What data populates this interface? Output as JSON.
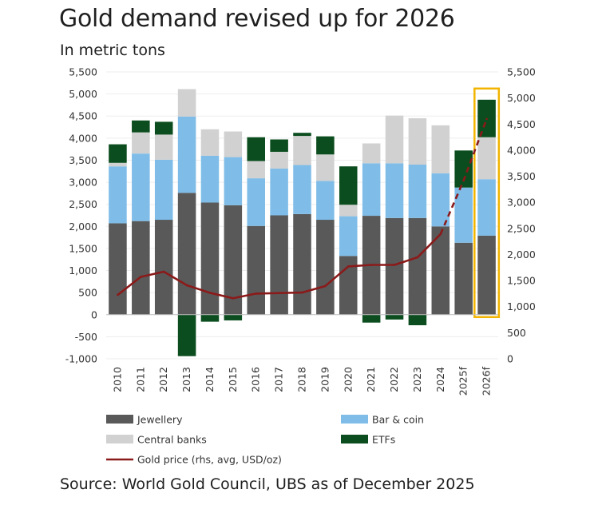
{
  "chart_data": {
    "type": "bar",
    "stacked": true,
    "title": "Gold demand revised up for 2026",
    "subtitle": "In metric tons",
    "source": "Source: World Gold Council, UBS as of December 2025",
    "categories": [
      "2010",
      "2011",
      "2012",
      "2013",
      "2014",
      "2015",
      "2016",
      "2017",
      "2018",
      "2019",
      "2020",
      "2021",
      "2022",
      "2023",
      "2024",
      "2025f",
      "2026f"
    ],
    "series": [
      {
        "name": "Jewellery",
        "color": "#595959",
        "values": [
          2070,
          2120,
          2150,
          2760,
          2540,
          2480,
          2010,
          2250,
          2280,
          2150,
          1330,
          2240,
          2190,
          2190,
          2000,
          1630,
          1790
        ]
      },
      {
        "name": "Bar & coin",
        "color": "#7fbde8",
        "values": [
          1290,
          1530,
          1360,
          1730,
          1060,
          1090,
          1080,
          1060,
          1110,
          880,
          900,
          1190,
          1240,
          1210,
          1200,
          1250,
          1280
        ]
      },
      {
        "name": "Central banks",
        "color": "#d1d1d1",
        "values": [
          80,
          480,
          570,
          620,
          600,
          580,
          390,
          380,
          660,
          600,
          260,
          450,
          1080,
          1050,
          1090,
          0,
          950
        ]
      },
      {
        "name": "ETFs",
        "color": "#0b4d1e",
        "values": [
          420,
          270,
          290,
          -940,
          -160,
          -130,
          540,
          280,
          70,
          410,
          870,
          -180,
          -110,
          -240,
          0,
          840,
          850
        ]
      }
    ],
    "line_series": {
      "name": "Gold price (rhs, avg, USD/oz)",
      "color": "#8b1a1a",
      "values": [
        1225,
        1570,
        1670,
        1410,
        1265,
        1160,
        1250,
        1260,
        1270,
        1395,
        1770,
        1800,
        1800,
        1945,
        2390,
        3420,
        4600
      ]
    },
    "left_axis": {
      "min": -1000,
      "max": 5500,
      "step": 500,
      "tick_labels": [
        "-1,000",
        "-500",
        "0",
        "500",
        "1,000",
        "1,500",
        "2,000",
        "2,500",
        "3,000",
        "3,500",
        "4,000",
        "4,500",
        "5,000",
        "5,500"
      ]
    },
    "right_axis": {
      "min": 0,
      "max": 5500,
      "step": 500,
      "tick_labels": [
        "0",
        "500",
        "1,000",
        "1,500",
        "2,000",
        "2,500",
        "3,000",
        "3,500",
        "4,000",
        "4,500",
        "5,000",
        "5,500"
      ]
    },
    "highlight_category": "2026f",
    "highlight_color": "#f2b400",
    "legend": [
      {
        "label": "Jewellery",
        "color": "#595959",
        "kind": "box"
      },
      {
        "label": "Bar & coin",
        "color": "#7fbde8",
        "kind": "box"
      },
      {
        "label": "Central banks",
        "color": "#d1d1d1",
        "kind": "box"
      },
      {
        "label": "ETFs",
        "color": "#0b4d1e",
        "kind": "box"
      },
      {
        "label": "Gold price (rhs, avg, USD/oz)",
        "color": "#8b1a1a",
        "kind": "line"
      }
    ]
  }
}
